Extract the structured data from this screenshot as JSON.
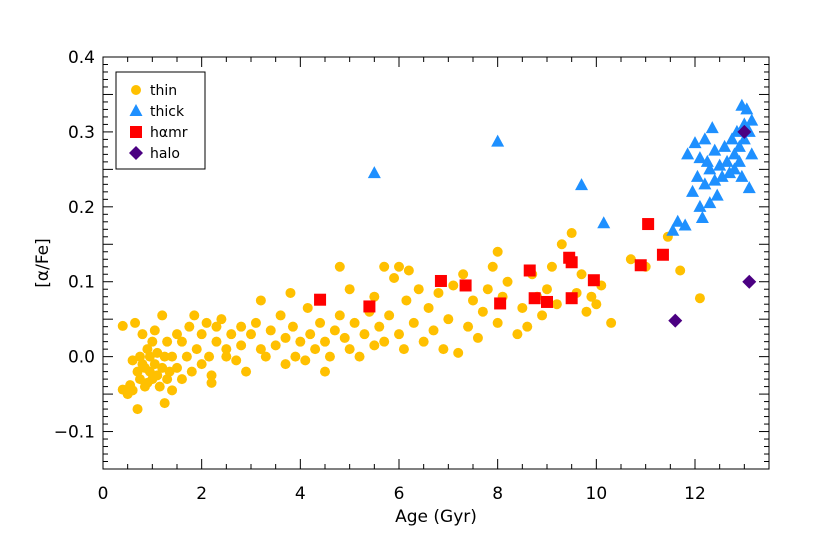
{
  "chart_data": {
    "type": "scatter",
    "title": "",
    "xlabel": "Age (Gyr)",
    "ylabel": "[α/Fe]",
    "xlim": [
      0,
      13.5
    ],
    "ylim": [
      -0.15,
      0.4
    ],
    "xticks": [
      0,
      2,
      4,
      6,
      8,
      10,
      12
    ],
    "xtick_labels": [
      "0",
      "2",
      "4",
      "6",
      "8",
      "10",
      "12"
    ],
    "yticks": [
      -0.1,
      0.0,
      0.1,
      0.2,
      0.3,
      0.4
    ],
    "ytick_labels": [
      "−0.1",
      "0.0",
      "0.1",
      "0.2",
      "0.3",
      "0.4"
    ],
    "grid": false,
    "legend_position": "top-left",
    "series": [
      {
        "name": "thin",
        "marker": "circle",
        "color": "#FFC000",
        "points": [
          [
            0.4,
            -0.044
          ],
          [
            0.4,
            0.041
          ],
          [
            0.5,
            -0.05
          ],
          [
            0.55,
            -0.038
          ],
          [
            0.6,
            -0.045
          ],
          [
            0.6,
            -0.005
          ],
          [
            0.65,
            0.045
          ],
          [
            0.7,
            -0.02
          ],
          [
            0.7,
            -0.07
          ],
          [
            0.75,
            -0.03
          ],
          [
            0.75,
            0.0
          ],
          [
            0.8,
            -0.01
          ],
          [
            0.8,
            0.03
          ],
          [
            0.85,
            -0.04
          ],
          [
            0.85,
            -0.015
          ],
          [
            0.9,
            0.01
          ],
          [
            0.9,
            -0.035
          ],
          [
            0.95,
            -0.02
          ],
          [
            0.95,
            0.0
          ],
          [
            1.0,
            0.02
          ],
          [
            1.0,
            -0.03
          ],
          [
            1.05,
            -0.01
          ],
          [
            1.05,
            0.035
          ],
          [
            1.1,
            -0.025
          ],
          [
            1.1,
            0.005
          ],
          [
            1.15,
            -0.04
          ],
          [
            1.2,
            -0.015
          ],
          [
            1.2,
            0.055
          ],
          [
            1.25,
            -0.062
          ],
          [
            1.25,
            0.0
          ],
          [
            1.3,
            -0.03
          ],
          [
            1.3,
            0.02
          ],
          [
            1.35,
            -0.02
          ],
          [
            1.4,
            0.0
          ],
          [
            1.4,
            -0.045
          ],
          [
            1.5,
            -0.015
          ],
          [
            1.5,
            0.03
          ],
          [
            1.6,
            0.02
          ],
          [
            1.6,
            -0.03
          ],
          [
            1.7,
            0.0
          ],
          [
            1.75,
            0.04
          ],
          [
            1.8,
            -0.02
          ],
          [
            1.85,
            0.055
          ],
          [
            1.9,
            0.01
          ],
          [
            2.0,
            0.03
          ],
          [
            2.0,
            -0.01
          ],
          [
            2.1,
            0.045
          ],
          [
            2.15,
            0.0
          ],
          [
            2.2,
            -0.025
          ],
          [
            2.2,
            -0.035
          ],
          [
            2.3,
            0.02
          ],
          [
            2.3,
            0.04
          ],
          [
            2.4,
            0.05
          ],
          [
            2.5,
            0.01
          ],
          [
            2.5,
            0.0
          ],
          [
            2.6,
            0.03
          ],
          [
            2.7,
            -0.005
          ],
          [
            2.8,
            0.015
          ],
          [
            2.8,
            0.04
          ],
          [
            2.9,
            -0.02
          ],
          [
            3.0,
            0.03
          ],
          [
            3.1,
            0.045
          ],
          [
            3.2,
            0.01
          ],
          [
            3.2,
            0.075
          ],
          [
            3.3,
            0.0
          ],
          [
            3.4,
            0.035
          ],
          [
            3.5,
            0.015
          ],
          [
            3.6,
            0.055
          ],
          [
            3.7,
            -0.01
          ],
          [
            3.7,
            0.025
          ],
          [
            3.8,
            0.085
          ],
          [
            3.85,
            0.04
          ],
          [
            3.9,
            0.0
          ],
          [
            4.0,
            0.02
          ],
          [
            4.1,
            -0.005
          ],
          [
            4.15,
            0.065
          ],
          [
            4.2,
            0.03
          ],
          [
            4.3,
            0.01
          ],
          [
            4.4,
            0.045
          ],
          [
            4.5,
            0.02
          ],
          [
            4.5,
            -0.02
          ],
          [
            4.6,
            0.0
          ],
          [
            4.7,
            0.035
          ],
          [
            4.8,
            0.055
          ],
          [
            4.8,
            0.12
          ],
          [
            4.9,
            0.025
          ],
          [
            5.0,
            0.01
          ],
          [
            5.0,
            0.09
          ],
          [
            5.1,
            0.045
          ],
          [
            5.2,
            0.0
          ],
          [
            5.3,
            0.03
          ],
          [
            5.4,
            0.06
          ],
          [
            5.5,
            0.08
          ],
          [
            5.5,
            0.015
          ],
          [
            5.6,
            0.04
          ],
          [
            5.7,
            0.12
          ],
          [
            5.7,
            0.02
          ],
          [
            5.8,
            0.055
          ],
          [
            5.9,
            0.105
          ],
          [
            6.0,
            0.03
          ],
          [
            6.0,
            0.12
          ],
          [
            6.1,
            0.01
          ],
          [
            6.15,
            0.075
          ],
          [
            6.2,
            0.115
          ],
          [
            6.3,
            0.045
          ],
          [
            6.4,
            0.09
          ],
          [
            6.5,
            0.02
          ],
          [
            6.6,
            0.065
          ],
          [
            6.7,
            0.035
          ],
          [
            6.8,
            0.085
          ],
          [
            6.9,
            0.01
          ],
          [
            7.0,
            0.05
          ],
          [
            7.1,
            0.095
          ],
          [
            7.2,
            0.005
          ],
          [
            7.3,
            0.11
          ],
          [
            7.4,
            0.04
          ],
          [
            7.5,
            0.075
          ],
          [
            7.6,
            0.025
          ],
          [
            7.7,
            0.06
          ],
          [
            7.8,
            0.09
          ],
          [
            7.9,
            0.12
          ],
          [
            8.0,
            0.14
          ],
          [
            8.0,
            0.045
          ],
          [
            8.1,
            0.08
          ],
          [
            8.2,
            0.1
          ],
          [
            8.4,
            0.03
          ],
          [
            8.5,
            0.065
          ],
          [
            8.6,
            0.04
          ],
          [
            8.7,
            0.11
          ],
          [
            8.8,
            0.08
          ],
          [
            8.9,
            0.055
          ],
          [
            9.0,
            0.09
          ],
          [
            9.1,
            0.12
          ],
          [
            9.2,
            0.07
          ],
          [
            9.3,
            0.15
          ],
          [
            9.5,
            0.165
          ],
          [
            9.6,
            0.085
          ],
          [
            9.7,
            0.11
          ],
          [
            9.8,
            0.06
          ],
          [
            9.9,
            0.08
          ],
          [
            10.0,
            0.07
          ],
          [
            10.1,
            0.095
          ],
          [
            10.3,
            0.045
          ],
          [
            10.7,
            0.13
          ],
          [
            11.0,
            0.12
          ],
          [
            11.45,
            0.16
          ],
          [
            11.7,
            0.115
          ],
          [
            12.1,
            0.078
          ]
        ]
      },
      {
        "name": "thick",
        "marker": "triangle",
        "color": "#1E90FF",
        "points": [
          [
            5.5,
            0.245
          ],
          [
            8.0,
            0.287
          ],
          [
            9.7,
            0.229
          ],
          [
            10.15,
            0.178
          ],
          [
            11.55,
            0.168
          ],
          [
            11.65,
            0.18
          ],
          [
            11.8,
            0.175
          ],
          [
            11.85,
            0.27
          ],
          [
            11.95,
            0.22
          ],
          [
            12.0,
            0.285
          ],
          [
            12.05,
            0.24
          ],
          [
            12.1,
            0.2
          ],
          [
            12.1,
            0.265
          ],
          [
            12.15,
            0.185
          ],
          [
            12.2,
            0.23
          ],
          [
            12.2,
            0.29
          ],
          [
            12.25,
            0.26
          ],
          [
            12.3,
            0.205
          ],
          [
            12.3,
            0.25
          ],
          [
            12.35,
            0.305
          ],
          [
            12.4,
            0.235
          ],
          [
            12.4,
            0.275
          ],
          [
            12.45,
            0.215
          ],
          [
            12.5,
            0.255
          ],
          [
            12.55,
            0.24
          ],
          [
            12.6,
            0.28
          ],
          [
            12.65,
            0.26
          ],
          [
            12.7,
            0.245
          ],
          [
            12.75,
            0.29
          ],
          [
            12.8,
            0.27
          ],
          [
            12.8,
            0.25
          ],
          [
            12.85,
            0.3
          ],
          [
            12.9,
            0.26
          ],
          [
            12.9,
            0.28
          ],
          [
            12.95,
            0.335
          ],
          [
            12.95,
            0.24
          ],
          [
            13.0,
            0.29
          ],
          [
            13.0,
            0.31
          ],
          [
            13.05,
            0.33
          ],
          [
            13.1,
            0.225
          ],
          [
            13.1,
            0.3
          ],
          [
            13.15,
            0.27
          ],
          [
            13.15,
            0.315
          ]
        ]
      },
      {
        "name": "hαmr",
        "marker": "square",
        "color": "#FF0000",
        "points": [
          [
            4.4,
            0.076
          ],
          [
            5.4,
            0.067
          ],
          [
            6.85,
            0.101
          ],
          [
            7.35,
            0.095
          ],
          [
            8.05,
            0.071
          ],
          [
            8.65,
            0.115
          ],
          [
            8.75,
            0.078
          ],
          [
            9.0,
            0.073
          ],
          [
            9.45,
            0.132
          ],
          [
            9.5,
            0.126
          ],
          [
            9.5,
            0.078
          ],
          [
            9.95,
            0.102
          ],
          [
            10.9,
            0.122
          ],
          [
            11.05,
            0.177
          ],
          [
            11.35,
            0.136
          ]
        ]
      },
      {
        "name": "halo",
        "marker": "diamond",
        "color": "#4B0082",
        "points": [
          [
            11.6,
            0.048
          ],
          [
            13.0,
            0.3
          ],
          [
            13.1,
            0.1
          ]
        ]
      }
    ]
  }
}
